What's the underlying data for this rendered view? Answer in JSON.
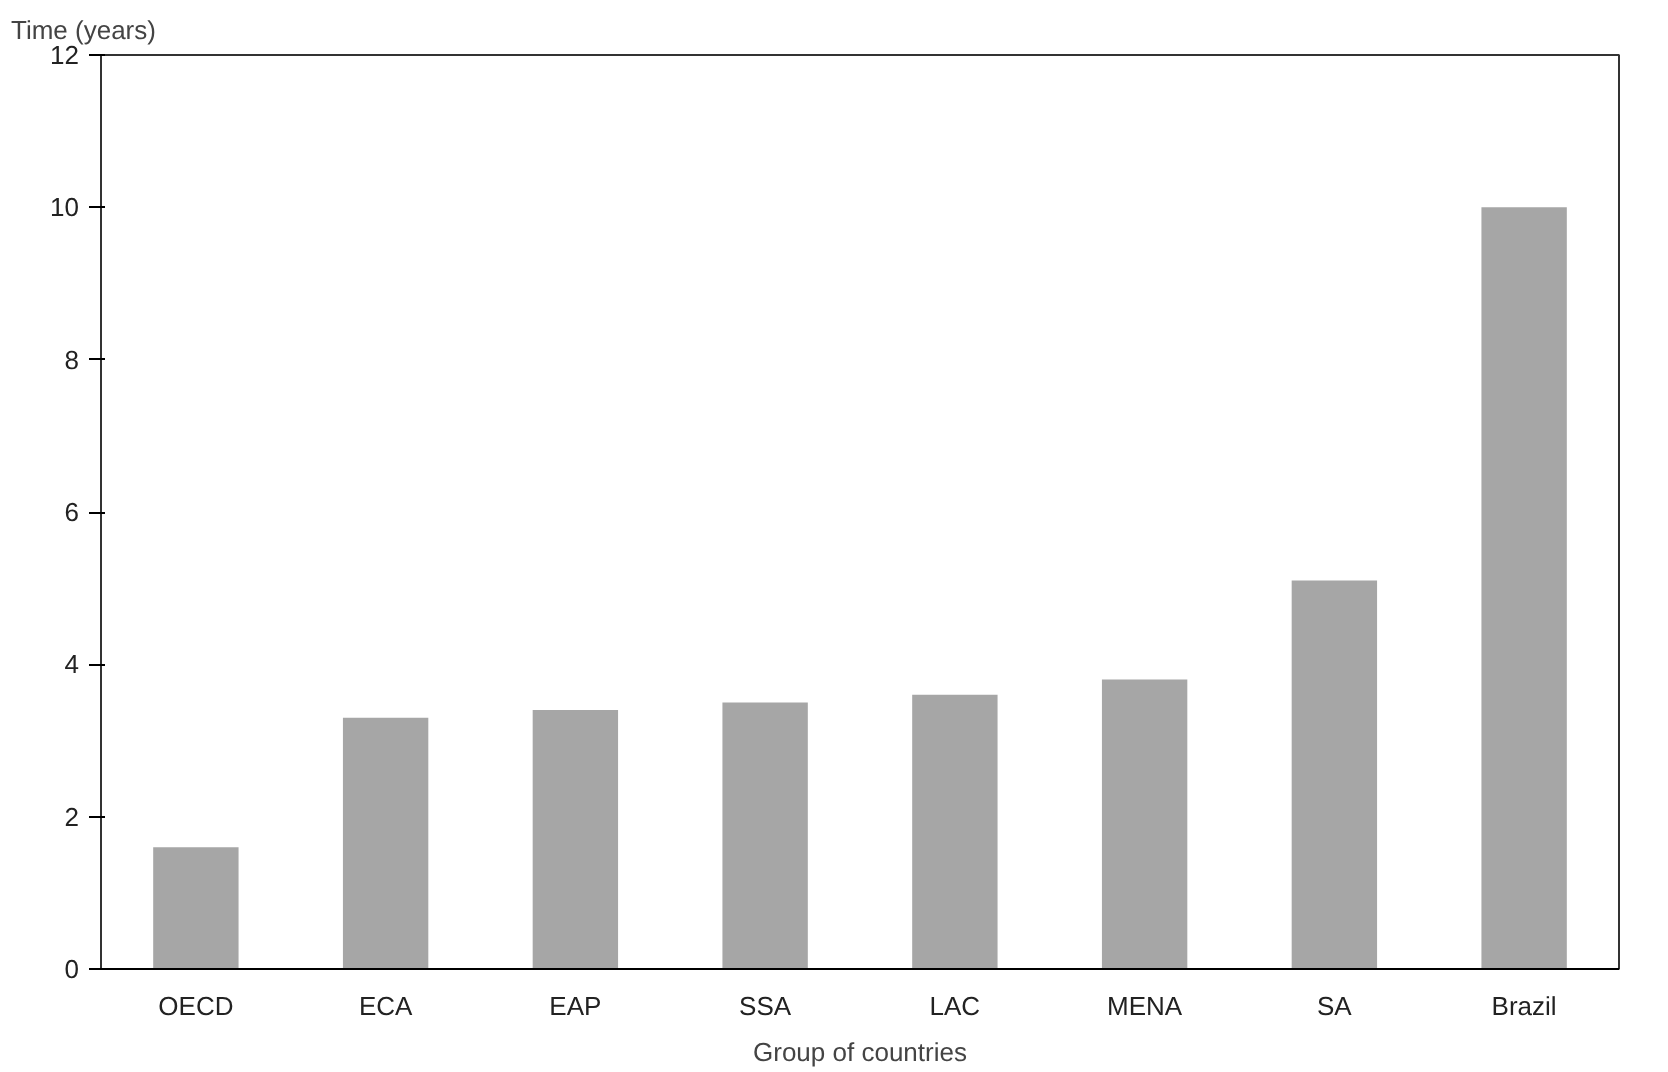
{
  "chart_data": {
    "type": "bar",
    "ylabel": "Time (years)",
    "xlabel": "Group of countries",
    "categories": [
      "OECD",
      "ECA",
      "EAP",
      "SSA",
      "LAC",
      "MENA",
      "SA",
      "Brazil"
    ],
    "values": [
      1.6,
      3.3,
      3.4,
      3.5,
      3.6,
      3.8,
      5.1,
      10.0
    ],
    "color": "#a6a6a6",
    "ylim": [
      0,
      12
    ],
    "yticks": [
      0,
      2,
      4,
      6,
      8,
      10,
      12
    ],
    "grid": false
  }
}
